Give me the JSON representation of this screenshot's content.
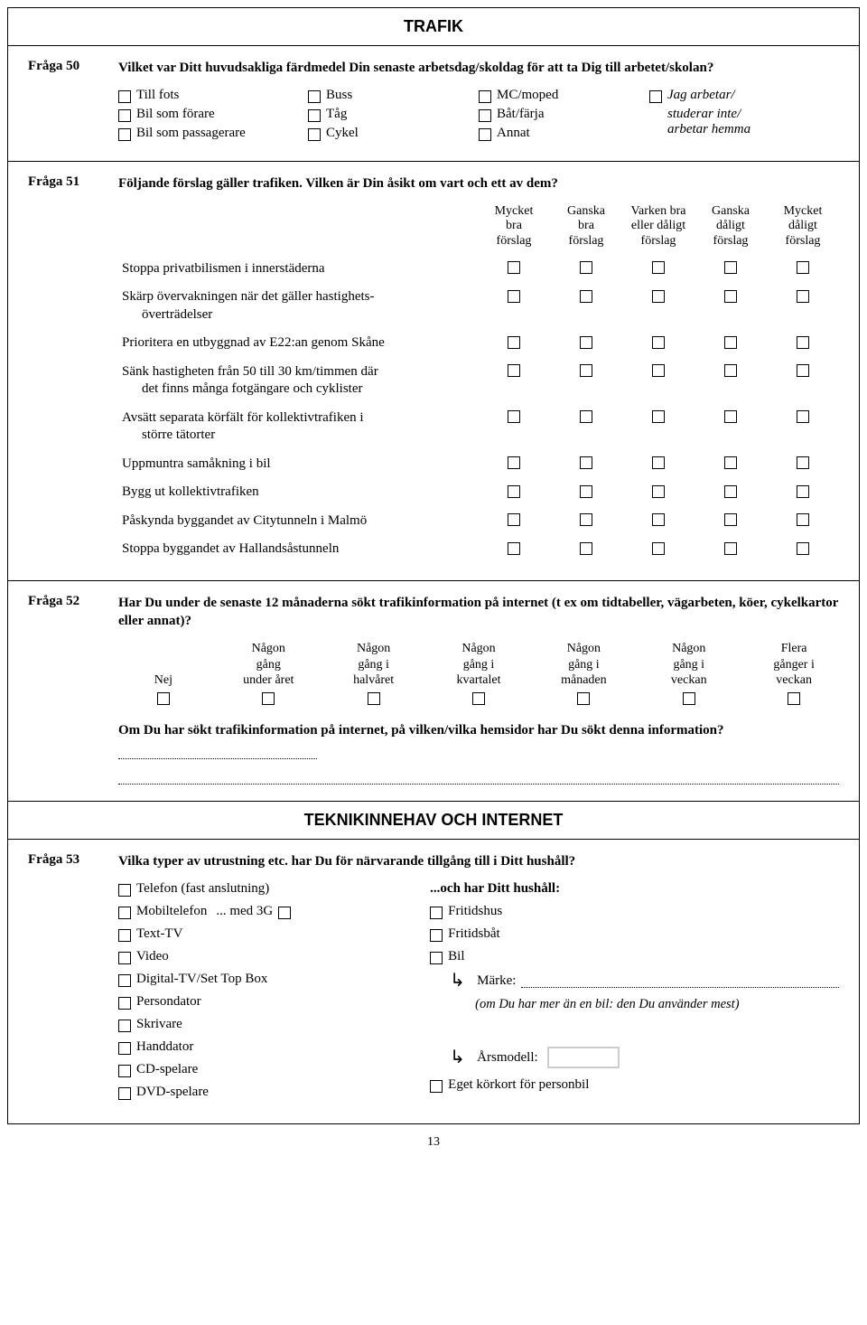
{
  "page_number": "13",
  "section1_title": "TRAFIK",
  "section2_title": "TEKNIKINNEHAV OCH INTERNET",
  "q50": {
    "label": "Fråga 50",
    "text": "Vilket var Ditt huvudsakliga färdmedel Din senaste arbetsdag/skoldag för att ta Dig till arbetet/skolan?",
    "col1": [
      "Till fots",
      "Bil som förare",
      "Bil som passagerare"
    ],
    "col2": [
      "Buss",
      "Tåg",
      "Cykel"
    ],
    "col3": [
      "MC/moped",
      "Båt/färja",
      "Annat"
    ],
    "col4_lead_cb": true,
    "col4": [
      "Jag arbetar/",
      "studerar inte/",
      "arbetar hemma"
    ]
  },
  "q51": {
    "label": "Fråga 51",
    "text": "Följande förslag gäller trafiken. Vilken är Din åsikt om vart och ett av dem?",
    "headers": [
      [
        "Mycket",
        "bra",
        "förslag"
      ],
      [
        "Ganska",
        "bra",
        "förslag"
      ],
      [
        "Varken bra",
        "eller dåligt",
        "förslag"
      ],
      [
        "Ganska",
        "dåligt",
        "förslag"
      ],
      [
        "Mycket",
        "dåligt",
        "förslag"
      ]
    ],
    "rows": [
      {
        "text": "Stoppa privatbilismen i innerstäderna"
      },
      {
        "text": "Skärp övervakningen när det gäller hastighets-",
        "cont": "överträdelser"
      },
      {
        "text": "Prioritera en utbyggnad av E22:an genom Skåne"
      },
      {
        "text": "Sänk hastigheten från 50 till 30 km/timmen där",
        "cont": "det finns många fotgängare och cyklister"
      },
      {
        "text": "Avsätt separata körfält för kollektivtrafiken i",
        "cont": "större tätorter"
      },
      {
        "text": "Uppmuntra samåkning i bil"
      },
      {
        "text": "Bygg ut kollektivtrafiken"
      },
      {
        "text": "Påskynda byggandet av Citytunneln i Malmö"
      },
      {
        "text": "Stoppa byggandet av Hallandsåstunneln"
      }
    ]
  },
  "q52": {
    "label": "Fråga 52",
    "text": "Har Du under de senaste 12 månaderna sökt trafikinformation på internet (t ex om tidtabeller, vägarbeten, köer, cykelkartor eller annat)?",
    "options": [
      [
        "",
        "",
        "Nej"
      ],
      [
        "Någon",
        "gång",
        "under året"
      ],
      [
        "Någon",
        "gång i",
        "halvåret"
      ],
      [
        "Någon",
        "gång i",
        "kvartalet"
      ],
      [
        "Någon",
        "gång i",
        "månaden"
      ],
      [
        "Någon",
        "gång i",
        "veckan"
      ],
      [
        "Flera",
        "gånger i",
        "veckan"
      ]
    ],
    "followup": "Om Du har sökt trafikinformation på internet, på vilken/vilka hemsidor har Du sökt denna information?"
  },
  "q53": {
    "label": "Fråga 53",
    "text": "Vilka typer av utrustning etc. har Du för närvarande tillgång till i Ditt hushåll?",
    "left1": "Telefon (fast anslutning)",
    "left2a": "Mobiltelefon",
    "left2b": "... med 3G",
    "left_rest": [
      "Text-TV",
      "Video",
      "Digital-TV/Set Top Box",
      "Persondator",
      "Skrivare",
      "Handdator",
      "CD-spelare",
      "DVD-spelare"
    ],
    "right_head": "...och har Ditt hushåll:",
    "right_items": [
      "Fritidshus",
      "Fritidsbåt",
      "Bil"
    ],
    "marke_label": "Märke:",
    "marke_note": "(om Du har mer än en bil: den Du använder mest)",
    "arsmodell_label": "Årsmodell:",
    "korkort": "Eget körkort för personbil"
  }
}
